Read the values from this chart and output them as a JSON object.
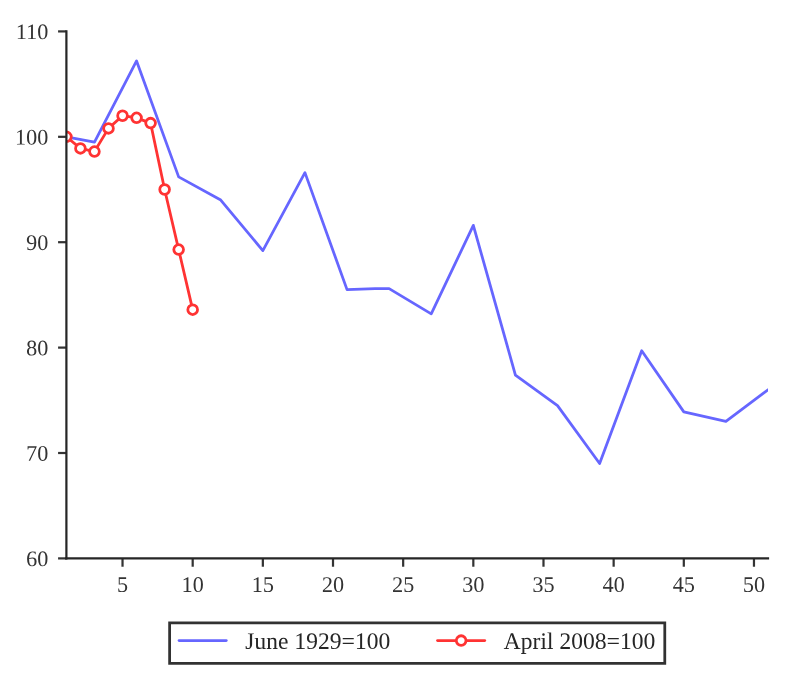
{
  "chart_data": {
    "type": "line",
    "series": [
      {
        "name": "June 1929=100",
        "color": "#6666ff",
        "marker": "none",
        "x": [
          1,
          3,
          6,
          9,
          12,
          15,
          18,
          21,
          23,
          24,
          27,
          30,
          33,
          36,
          39,
          42,
          45,
          48,
          51
        ],
        "values": [
          100,
          99.5,
          107.2,
          96.2,
          94,
          89.2,
          96.6,
          85.5,
          85.6,
          85.6,
          83.2,
          91.6,
          77.4,
          74.5,
          69,
          79.7,
          73.9,
          73,
          76
        ]
      },
      {
        "name": "April 2008=100",
        "color": "#ff3333",
        "marker": "circle",
        "x": [
          1,
          2,
          3,
          4,
          5,
          6,
          7,
          8,
          9,
          10
        ],
        "values": [
          100,
          98.9,
          98.6,
          100.8,
          102,
          101.8,
          101.3,
          95,
          89.3,
          83.6
        ]
      }
    ],
    "xlim": [
      1,
      51
    ],
    "xticks": [
      5,
      10,
      15,
      20,
      25,
      30,
      35,
      40,
      45,
      50
    ],
    "ylim": [
      60,
      110
    ],
    "yticks": [
      60,
      70,
      80,
      90,
      100,
      110
    ],
    "grid": false,
    "legend": "bottom"
  }
}
